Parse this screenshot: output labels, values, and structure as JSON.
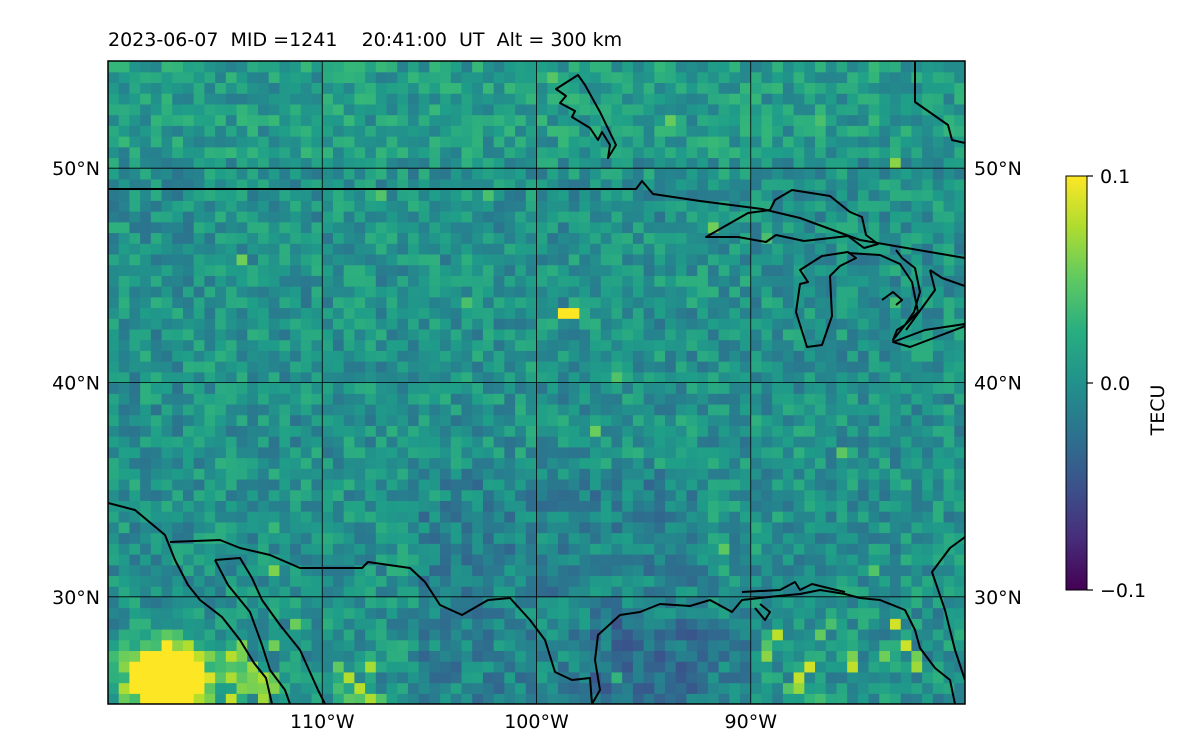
{
  "header": {
    "title": "2023-06-07  MID =1241    20:41:00  UT  Alt = 300 km"
  },
  "chart_data": {
    "type": "heatmap",
    "title": "2023-06-07  MID =1241    20:41:00  UT  Alt = 300 km",
    "xlabel": "",
    "ylabel": "",
    "x_range": [
      -120,
      -80
    ],
    "y_range": [
      25,
      55
    ],
    "x_units": "degrees longitude",
    "y_units": "degrees latitude",
    "x_ticks": [
      -110,
      -100,
      -90
    ],
    "x_tick_labels": [
      "110°W",
      "100°W",
      "90°W"
    ],
    "y_ticks": [
      30,
      40,
      50
    ],
    "y_tick_labels": [
      "30°N",
      "40°N",
      "50°N"
    ],
    "grid": true,
    "colormap": "viridis",
    "colorbar": {
      "label": "TECU",
      "vmin": -0.1,
      "vmax": 0.1,
      "ticks": [
        0.1,
        0.0,
        -0.1
      ],
      "tick_labels": [
        "0.1",
        "0.0",
        "−0.1"
      ]
    },
    "features": "coastlines and national borders of North America (US, Canada, Mexico, Great Lakes, Gulf of Mexico)",
    "field_description": "near-zero TEC perturbations mostly between -0.03 and 0.03 TECU; strong positive values (~0.1) near the southwestern corner; a few isolated positive pixels near 43N 99W; slightly negative values over the southern plains and northern Gulf region"
  }
}
